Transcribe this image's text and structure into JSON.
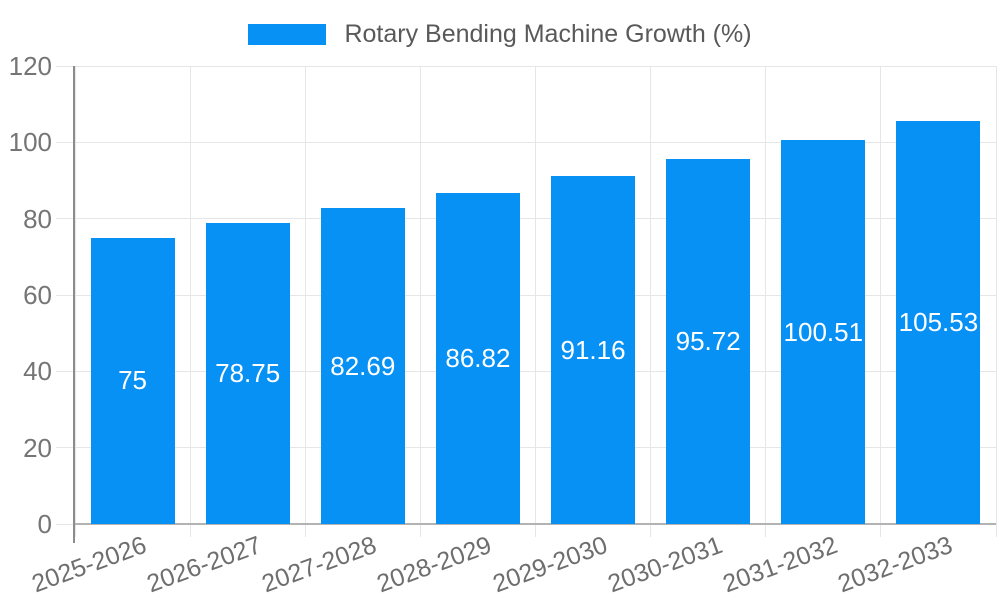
{
  "legend": {
    "label": "Rotary Bending Machine Growth (%)"
  },
  "colors": {
    "bar": "#0891f5",
    "grid": "#e6e6e6",
    "axis_line": "#8c8c8c",
    "baseline": "#b3b3b3",
    "tick_text": "#757575",
    "x_tick_text": "#6e6e6e",
    "legend_text": "#595959",
    "value_text": "#ffffff",
    "background": "#ffffff"
  },
  "chart_data": {
    "type": "bar",
    "title": "",
    "xlabel": "",
    "ylabel": "",
    "legend_position": "top",
    "grid": true,
    "categories": [
      "2025-2026",
      "2026-2027",
      "2027-2028",
      "2028-2029",
      "2029-2030",
      "2030-2031",
      "2031-2032",
      "2032-2033"
    ],
    "series": [
      {
        "name": "Rotary Bending Machine Growth (%)",
        "values": [
          75,
          78.75,
          82.69,
          86.82,
          91.16,
          95.72,
          100.51,
          105.53
        ]
      }
    ],
    "value_labels": [
      "75",
      "78.75",
      "82.69",
      "86.82",
      "91.16",
      "95.72",
      "100.51",
      "105.53"
    ],
    "ylim": [
      0,
      120
    ],
    "yticks": [
      0,
      20,
      40,
      60,
      80,
      100,
      120
    ]
  }
}
